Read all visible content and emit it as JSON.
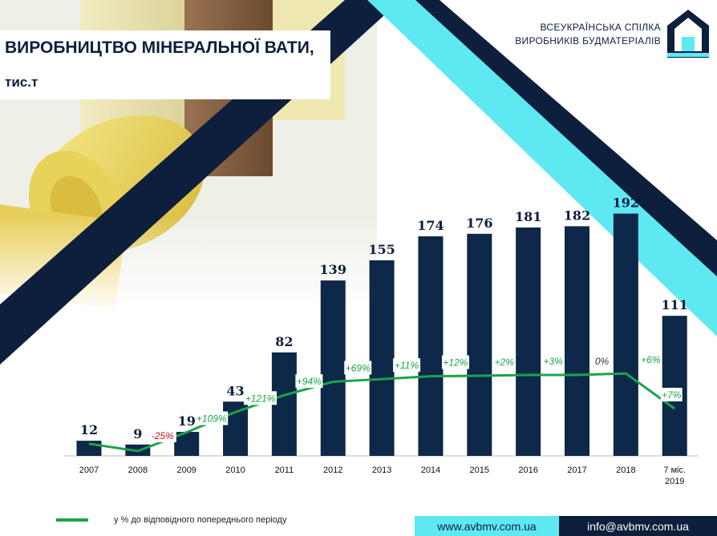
{
  "header": {
    "title_line1": "ВИРОБНИЦТВО МІНЕРАЛЬНОЇ ВАТИ,",
    "title_line2": "тис.т"
  },
  "organization": {
    "line1": "ВСЕУКРАЇНСЬКА СПІЛКА",
    "line2": "ВИРОБНИКІВ БУДМАТЕРІАЛІВ",
    "logo_icon": "house-logo-icon"
  },
  "colors": {
    "bar": "#0d2848",
    "line": "#1aa34a",
    "negative_label": "#c0141c",
    "positive_label": "#1aa34a",
    "zero_label": "#333333",
    "accent_cyan": "#5ee9f2",
    "navy": "#0d1f3c"
  },
  "chart_data": {
    "type": "bar",
    "categories": [
      "2007",
      "2008",
      "2009",
      "2010",
      "2011",
      "2012",
      "2013",
      "2014",
      "2015",
      "2016",
      "2017",
      "2018",
      "7 міс. 2019"
    ],
    "series": [
      {
        "name": "",
        "values": [
          12,
          9,
          19,
          43,
          82,
          139,
          155,
          174,
          176,
          181,
          182,
          192,
          111
        ],
        "labels": [
          "12",
          "9",
          "19",
          "43",
          "82",
          "139",
          "155",
          "174",
          "176",
          "181",
          "182",
          "192",
          "111"
        ]
      },
      {
        "name": "у % до відповідного попереднього періоду",
        "type": "line",
        "values": [
          null,
          -25,
          109,
          121,
          94,
          69,
          11,
          12,
          2,
          3,
          0,
          6,
          7
        ],
        "labels": [
          "",
          "-25%",
          "+109%",
          "+121%",
          "+94%",
          "+69%",
          "+11%",
          "+12%",
          "+2%",
          "+3%",
          "0%",
          "+6%",
          "+7%"
        ]
      }
    ],
    "title": "ВИРОБНИЦТВО МІНЕРАЛЬНОЇ ВАТИ, тис.т",
    "xlabel": "",
    "ylabel": "",
    "ylim": [
      0,
      200
    ],
    "grid": false,
    "legend": "bottom-left"
  },
  "legend": {
    "label": "у % до відповідного попереднього періоду"
  },
  "footer": {
    "website": "www.avbmv.com.ua",
    "email": "info@avbmv.com.ua"
  }
}
